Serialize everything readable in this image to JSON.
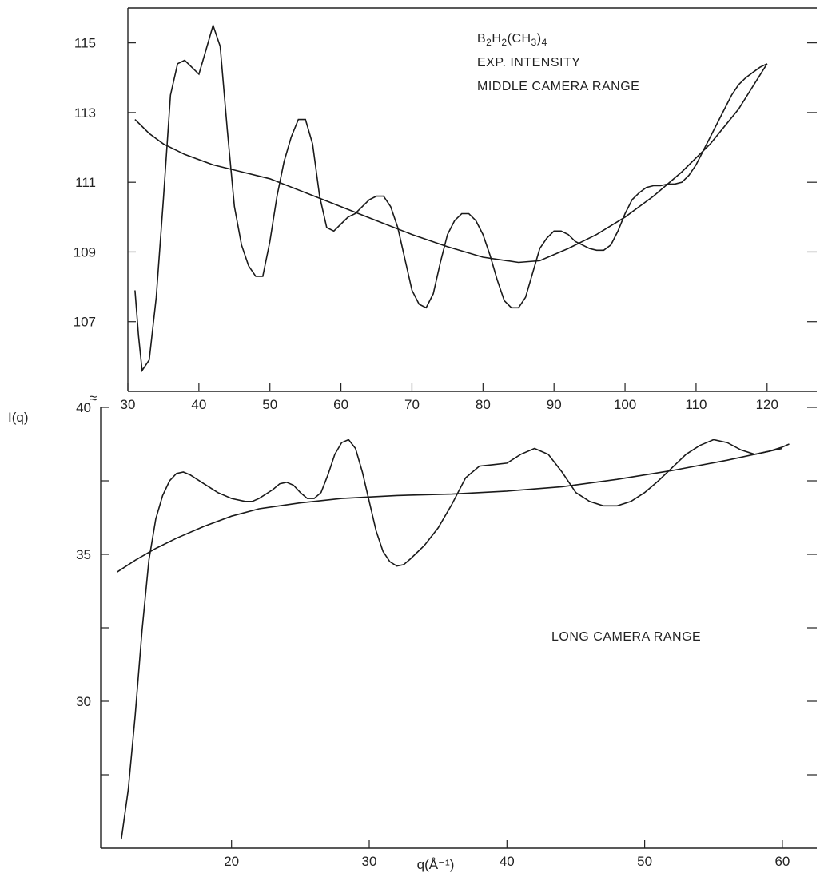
{
  "chart_data": [
    {
      "type": "line",
      "panel": "top",
      "annotation_lines": [
        "B2H2(CH3)4",
        "EXP. INTENSITY",
        "MIDDLE CAMERA RANGE"
      ],
      "formula": {
        "parts": [
          [
            "B",
            false
          ],
          [
            "2",
            true
          ],
          [
            "H",
            false
          ],
          [
            "2",
            true
          ],
          [
            "(CH",
            false
          ],
          [
            "3",
            true
          ],
          [
            ")",
            false
          ],
          [
            "4",
            true
          ]
        ]
      },
      "xlabel": "",
      "ylabel": "I(q)",
      "xlim": [
        30,
        127
      ],
      "ylim": [
        105,
        116
      ],
      "x_ticks": [
        30,
        40,
        50,
        60,
        70,
        80,
        90,
        100,
        110,
        120
      ],
      "y_ticks": [
        107,
        109,
        111,
        113,
        115
      ],
      "y_ticks_right": [
        107,
        109,
        111,
        113,
        115
      ],
      "grid": false,
      "series": [
        {
          "points": [
            [
              31,
              107.9
            ],
            [
              31.5,
              106.6
            ],
            [
              32,
              105.6
            ],
            [
              33,
              105.9
            ],
            [
              34,
              107.7
            ],
            [
              35,
              110.5
            ],
            [
              36,
              113.5
            ],
            [
              37,
              114.4
            ],
            [
              38,
              114.5
            ],
            [
              39,
              114.3
            ],
            [
              40,
              114.1
            ],
            [
              41,
              114.8
            ],
            [
              42,
              115.5
            ],
            [
              43,
              114.9
            ],
            [
              44,
              112.5
            ],
            [
              45,
              110.3
            ],
            [
              46,
              109.2
            ],
            [
              47,
              108.6
            ],
            [
              48,
              108.3
            ],
            [
              49,
              108.3
            ],
            [
              50,
              109.3
            ],
            [
              51,
              110.6
            ],
            [
              52,
              111.6
            ],
            [
              53,
              112.3
            ],
            [
              54,
              112.8
            ],
            [
              55,
              112.8
            ],
            [
              56,
              112.1
            ],
            [
              57,
              110.6
            ],
            [
              58,
              109.7
            ],
            [
              59,
              109.6
            ],
            [
              60,
              109.8
            ],
            [
              61,
              110.0
            ],
            [
              62,
              110.1
            ],
            [
              63,
              110.3
            ],
            [
              64,
              110.5
            ],
            [
              65,
              110.6
            ],
            [
              66,
              110.6
            ],
            [
              67,
              110.3
            ],
            [
              68,
              109.7
            ],
            [
              69,
              108.8
            ],
            [
              70,
              107.9
            ],
            [
              71,
              107.5
            ],
            [
              72,
              107.4
            ],
            [
              73,
              107.8
            ],
            [
              74,
              108.7
            ],
            [
              75,
              109.5
            ],
            [
              76,
              109.9
            ],
            [
              77,
              110.1
            ],
            [
              78,
              110.1
            ],
            [
              79,
              109.9
            ],
            [
              80,
              109.5
            ],
            [
              81,
              108.9
            ],
            [
              82,
              108.2
            ],
            [
              83,
              107.6
            ],
            [
              84,
              107.4
            ],
            [
              85,
              107.4
            ],
            [
              86,
              107.7
            ],
            [
              87,
              108.4
            ],
            [
              88,
              109.1
            ],
            [
              89,
              109.4
            ],
            [
              90,
              109.6
            ],
            [
              91,
              109.6
            ],
            [
              92,
              109.5
            ],
            [
              93,
              109.3
            ],
            [
              94,
              109.2
            ],
            [
              95,
              109.1
            ],
            [
              96,
              109.05
            ],
            [
              97,
              109.05
            ],
            [
              98,
              109.2
            ],
            [
              99,
              109.6
            ],
            [
              100,
              110.1
            ],
            [
              101,
              110.5
            ],
            [
              102,
              110.7
            ],
            [
              103,
              110.85
            ],
            [
              104,
              110.9
            ],
            [
              105,
              110.9
            ],
            [
              106,
              110.95
            ],
            [
              107,
              110.95
            ],
            [
              108,
              111.0
            ],
            [
              109,
              111.2
            ],
            [
              110,
              111.5
            ],
            [
              111,
              111.9
            ],
            [
              112,
              112.3
            ],
            [
              113,
              112.7
            ],
            [
              114,
              113.1
            ],
            [
              115,
              113.5
            ],
            [
              116,
              113.8
            ],
            [
              117,
              114.0
            ],
            [
              118,
              114.15
            ],
            [
              119,
              114.3
            ],
            [
              120,
              114.4
            ]
          ]
        },
        {
          "points": [
            [
              31,
              112.8
            ],
            [
              33,
              112.4
            ],
            [
              35,
              112.1
            ],
            [
              38,
              111.8
            ],
            [
              42,
              111.5
            ],
            [
              46,
              111.3
            ],
            [
              50,
              111.1
            ],
            [
              55,
              110.7
            ],
            [
              60,
              110.3
            ],
            [
              65,
              109.9
            ],
            [
              70,
              109.5
            ],
            [
              75,
              109.15
            ],
            [
              80,
              108.85
            ],
            [
              85,
              108.7
            ],
            [
              88,
              108.75
            ],
            [
              92,
              109.1
            ],
            [
              96,
              109.5
            ],
            [
              100,
              110.0
            ],
            [
              104,
              110.6
            ],
            [
              108,
              111.3
            ],
            [
              112,
              112.1
            ],
            [
              116,
              113.1
            ],
            [
              120,
              114.4
            ]
          ]
        }
      ]
    },
    {
      "type": "line",
      "panel": "bottom",
      "annotation_lines": [
        "LONG CAMERA RANGE"
      ],
      "xlabel": "q(Å⁻¹)",
      "ylabel": "I(q)",
      "xlim": [
        10.5,
        62.5
      ],
      "ylim": [
        25,
        40
      ],
      "x_ticks": [
        20,
        30,
        40,
        50,
        60
      ],
      "y_ticks": [
        30,
        35,
        40
      ],
      "y_ticks_minor": [
        27.5,
        32.5,
        37.5
      ],
      "y_ticks_right": [
        27.5,
        30,
        32.5,
        35,
        37.5,
        40
      ],
      "break_marker": "≈",
      "grid": false,
      "series": [
        {
          "points": [
            [
              12,
              25.3
            ],
            [
              12.5,
              27.0
            ],
            [
              13,
              29.5
            ],
            [
              13.5,
              32.4
            ],
            [
              14,
              34.8
            ],
            [
              14.5,
              36.2
            ],
            [
              15,
              37.0
            ],
            [
              15.5,
              37.5
            ],
            [
              16,
              37.75
            ],
            [
              16.5,
              37.8
            ],
            [
              17,
              37.7
            ],
            [
              18,
              37.4
            ],
            [
              19,
              37.1
            ],
            [
              20,
              36.9
            ],
            [
              21,
              36.8
            ],
            [
              21.5,
              36.8
            ],
            [
              22,
              36.9
            ],
            [
              23,
              37.2
            ],
            [
              23.5,
              37.4
            ],
            [
              24,
              37.45
            ],
            [
              24.5,
              37.35
            ],
            [
              25,
              37.1
            ],
            [
              25.5,
              36.9
            ],
            [
              26,
              36.9
            ],
            [
              26.5,
              37.1
            ],
            [
              27,
              37.7
            ],
            [
              27.5,
              38.4
            ],
            [
              28,
              38.8
            ],
            [
              28.5,
              38.9
            ],
            [
              29,
              38.6
            ],
            [
              29.5,
              37.8
            ],
            [
              30,
              36.8
            ],
            [
              30.5,
              35.8
            ],
            [
              31,
              35.1
            ],
            [
              31.5,
              34.75
            ],
            [
              32,
              34.6
            ],
            [
              32.5,
              34.65
            ],
            [
              33,
              34.85
            ],
            [
              34,
              35.3
            ],
            [
              35,
              35.9
            ],
            [
              36,
              36.7
            ],
            [
              37,
              37.6
            ],
            [
              38,
              38.0
            ],
            [
              39,
              38.05
            ],
            [
              40,
              38.1
            ],
            [
              41,
              38.4
            ],
            [
              42,
              38.6
            ],
            [
              43,
              38.4
            ],
            [
              44,
              37.8
            ],
            [
              45,
              37.1
            ],
            [
              46,
              36.8
            ],
            [
              47,
              36.65
            ],
            [
              48,
              36.65
            ],
            [
              49,
              36.8
            ],
            [
              50,
              37.1
            ],
            [
              51,
              37.5
            ],
            [
              52,
              37.95
            ],
            [
              53,
              38.4
            ],
            [
              54,
              38.7
            ],
            [
              55,
              38.9
            ],
            [
              56,
              38.8
            ],
            [
              57,
              38.55
            ],
            [
              58,
              38.4
            ],
            [
              59,
              38.5
            ],
            [
              60,
              38.65
            ],
            [
              60.5,
              38.75
            ]
          ]
        },
        {
          "points": [
            [
              11.7,
              34.4
            ],
            [
              13,
              34.8
            ],
            [
              14.5,
              35.2
            ],
            [
              16,
              35.55
            ],
            [
              18,
              35.95
            ],
            [
              20,
              36.3
            ],
            [
              22,
              36.55
            ],
            [
              25,
              36.75
            ],
            [
              28,
              36.9
            ],
            [
              32,
              37.0
            ],
            [
              36,
              37.05
            ],
            [
              40,
              37.15
            ],
            [
              44,
              37.3
            ],
            [
              48,
              37.55
            ],
            [
              52,
              37.85
            ],
            [
              56,
              38.2
            ],
            [
              60,
              38.6
            ]
          ]
        }
      ]
    }
  ]
}
